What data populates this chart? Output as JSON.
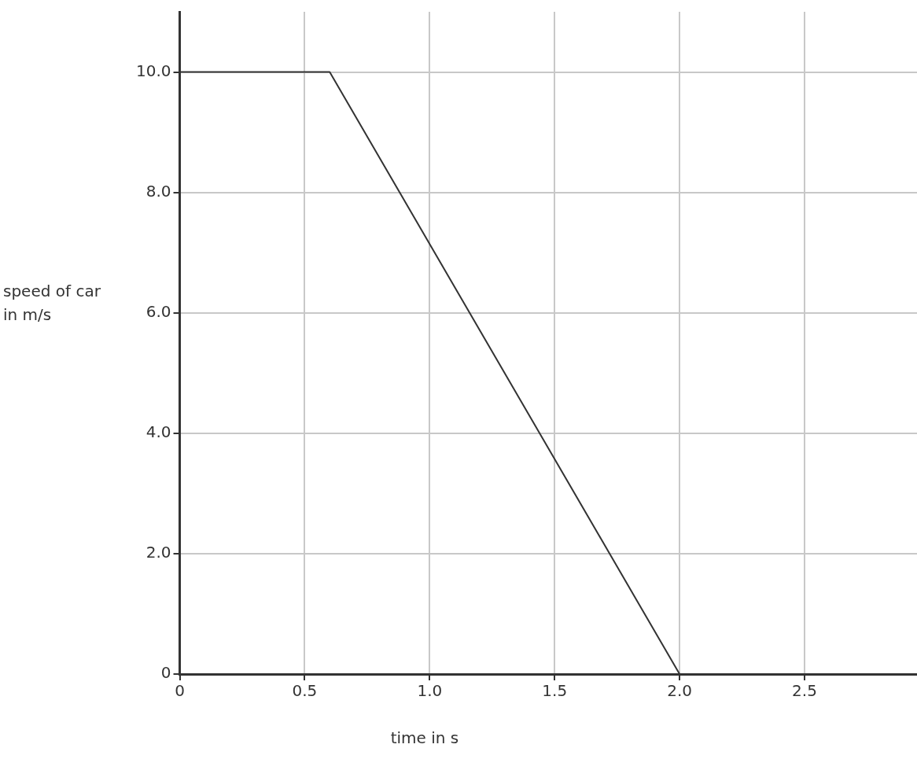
{
  "chart_data": {
    "type": "line",
    "xlabel": "time in s",
    "ylabel": "speed of car\nin m/s",
    "x": [
      0,
      0.6,
      2.0
    ],
    "series": [
      {
        "color": "#333333",
        "values": [
          10,
          10,
          0
        ]
      }
    ],
    "xlim": [
      0,
      2.95
    ],
    "ylim": [
      0,
      11
    ],
    "xticks": [
      {
        "value": 0,
        "label": "0"
      },
      {
        "value": 0.5,
        "label": "0.5"
      },
      {
        "value": 1,
        "label": "1.0"
      },
      {
        "value": 1.5,
        "label": "1.5"
      },
      {
        "value": 2,
        "label": "2.0"
      },
      {
        "value": 2.5,
        "label": "2.5"
      }
    ],
    "yticks": [
      {
        "value": 0,
        "label": "0"
      },
      {
        "value": 2,
        "label": "2.0"
      },
      {
        "value": 4,
        "label": "4.0"
      },
      {
        "value": 6,
        "label": "6.0"
      },
      {
        "value": 8,
        "label": "8.0"
      },
      {
        "value": 10,
        "label": "10.0"
      }
    ],
    "grid": true,
    "marker": "none",
    "line_style": "solid",
    "legend": false
  }
}
